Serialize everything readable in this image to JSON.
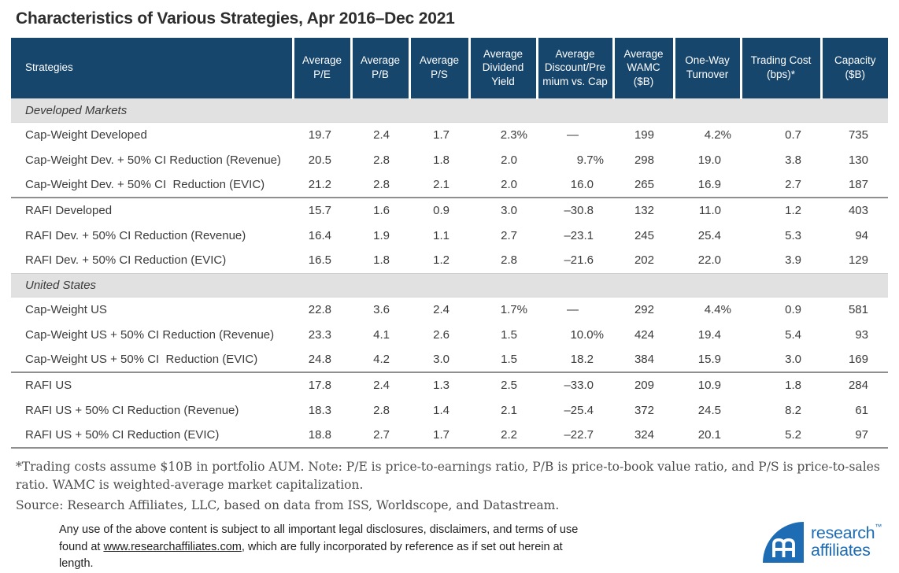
{
  "title": "Characteristics of Various Strategies, Apr 2016–Dec 2021",
  "table": {
    "columns": [
      "Strategies",
      "Average P/E",
      "Average P/B",
      "Average P/S",
      "Average Dividend Yield",
      "Average Discount/Premium vs. Cap",
      "Average WAMC ($B)",
      "One-Way Turnover",
      "Trading Cost (bps)*",
      "Capacity ($B)"
    ],
    "sections": [
      {
        "label": "Developed Markets",
        "rows": [
          {
            "strategy": "Cap-Weight Developed",
            "values": [
              "19.7",
              "2.4",
              "1.7",
              "2.3%",
              "—",
              "199",
              "4.2%",
              "0.7",
              "735"
            ]
          },
          {
            "strategy": "Cap-Weight Dev. + 50% CI Reduction (Revenue)",
            "values": [
              "20.5",
              "2.8",
              "1.8",
              "2.0",
              "9.7%",
              "298",
              "19.0",
              "3.8",
              "130"
            ]
          },
          {
            "strategy": "Cap-Weight Dev. + 50% CI  Reduction (EVIC)",
            "values": [
              "21.2",
              "2.8",
              "2.1",
              "2.0",
              "16.0",
              "265",
              "16.9",
              "2.7",
              "187"
            ]
          },
          {
            "strategy": "RAFI Developed",
            "divider_above": true,
            "values": [
              "15.7",
              "1.6",
              "0.9",
              "3.0",
              "–30.8",
              "132",
              "11.0",
              "1.2",
              "403"
            ]
          },
          {
            "strategy": "RAFI Dev. + 50% CI Reduction (Revenue)",
            "values": [
              "16.4",
              "1.9",
              "1.1",
              "2.7",
              "–23.1",
              "245",
              "25.4",
              "5.3",
              "94"
            ]
          },
          {
            "strategy": "RAFI Dev. + 50% CI Reduction (EVIC)",
            "values": [
              "16.5",
              "1.8",
              "1.2",
              "2.8",
              "–21.6",
              "202",
              "22.0",
              "3.9",
              "129"
            ]
          }
        ]
      },
      {
        "label": "United States",
        "rows": [
          {
            "strategy": "Cap-Weight US",
            "values": [
              "22.8",
              "3.6",
              "2.4",
              "1.7%",
              "—",
              "292",
              "4.4%",
              "0.9",
              "581"
            ]
          },
          {
            "strategy": "Cap-Weight US + 50% CI Reduction (Revenue)",
            "values": [
              "23.3",
              "4.1",
              "2.6",
              "1.5",
              "10.0%",
              "424",
              "19.4",
              "5.4",
              "93"
            ]
          },
          {
            "strategy": "Cap-Weight US + 50% CI  Reduction (EVIC)",
            "values": [
              "24.8",
              "4.2",
              "3.0",
              "1.5",
              "18.2",
              "384",
              "15.9",
              "3.0",
              "169"
            ]
          },
          {
            "strategy": "RAFI US",
            "divider_above": true,
            "values": [
              "17.8",
              "2.4",
              "1.3",
              "2.5",
              "–33.0",
              "209",
              "10.9",
              "1.8",
              "284"
            ]
          },
          {
            "strategy": "RAFI US + 50% CI Reduction (Revenue)",
            "values": [
              "18.3",
              "2.8",
              "1.4",
              "2.1",
              "–25.4",
              "372",
              "24.5",
              "8.2",
              "61"
            ]
          },
          {
            "strategy": "RAFI US + 50% CI Reduction (EVIC)",
            "values": [
              "18.8",
              "2.7",
              "1.7",
              "2.2",
              "–22.7",
              "324",
              "20.1",
              "5.2",
              "97"
            ]
          }
        ]
      }
    ]
  },
  "chart_data": {
    "type": "table",
    "title": "Characteristics of Various Strategies, Apr 2016–Dec 2021",
    "columns": [
      "Strategies",
      "Average P/E",
      "Average P/B",
      "Average P/S",
      "Average Dividend Yield",
      "Average Discount/Premium vs. Cap",
      "Average WAMC ($B)",
      "One-Way Turnover",
      "Trading Cost (bps)*",
      "Capacity ($B)"
    ],
    "rows": [
      [
        "Developed Markets",
        "",
        "",
        "",
        "",
        "",
        "",
        "",
        "",
        ""
      ],
      [
        "Cap-Weight Developed",
        "19.7",
        "2.4",
        "1.7",
        "2.3%",
        "—",
        "199",
        "4.2%",
        "0.7",
        "735"
      ],
      [
        "Cap-Weight Dev. + 50% CI Reduction (Revenue)",
        "20.5",
        "2.8",
        "1.8",
        "2.0",
        "9.7%",
        "298",
        "19.0",
        "3.8",
        "130"
      ],
      [
        "Cap-Weight Dev. + 50% CI Reduction (EVIC)",
        "21.2",
        "2.8",
        "2.1",
        "2.0",
        "16.0",
        "265",
        "16.9",
        "2.7",
        "187"
      ],
      [
        "RAFI Developed",
        "15.7",
        "1.6",
        "0.9",
        "3.0",
        "–30.8",
        "132",
        "11.0",
        "1.2",
        "403"
      ],
      [
        "RAFI Dev. + 50% CI Reduction (Revenue)",
        "16.4",
        "1.9",
        "1.1",
        "2.7",
        "–23.1",
        "245",
        "25.4",
        "5.3",
        "94"
      ],
      [
        "RAFI Dev. + 50% CI Reduction (EVIC)",
        "16.5",
        "1.8",
        "1.2",
        "2.8",
        "–21.6",
        "202",
        "22.0",
        "3.9",
        "129"
      ],
      [
        "United States",
        "",
        "",
        "",
        "",
        "",
        "",
        "",
        "",
        ""
      ],
      [
        "Cap-Weight US",
        "22.8",
        "3.6",
        "2.4",
        "1.7%",
        "—",
        "292",
        "4.4%",
        "0.9",
        "581"
      ],
      [
        "Cap-Weight US + 50% CI Reduction (Revenue)",
        "23.3",
        "4.1",
        "2.6",
        "1.5",
        "10.0%",
        "424",
        "19.4",
        "5.4",
        "93"
      ],
      [
        "Cap-Weight US + 50% CI Reduction (EVIC)",
        "24.8",
        "4.2",
        "3.0",
        "1.5",
        "18.2",
        "384",
        "15.9",
        "3.0",
        "169"
      ],
      [
        "RAFI US",
        "17.8",
        "2.4",
        "1.3",
        "2.5",
        "–33.0",
        "209",
        "10.9",
        "1.8",
        "284"
      ],
      [
        "RAFI US + 50% CI Reduction (Revenue)",
        "18.3",
        "2.8",
        "1.4",
        "2.1",
        "–25.4",
        "372",
        "24.5",
        "8.2",
        "61"
      ],
      [
        "RAFI US + 50% CI Reduction (EVIC)",
        "18.8",
        "2.7",
        "1.7",
        "2.2",
        "–22.7",
        "324",
        "20.1",
        "5.2",
        "97"
      ]
    ]
  },
  "footnotes": {
    "trading_note": "*Trading costs assume $10B in portfolio AUM. Note: P/E is price-to-earnings ratio, P/B is price-to-book value ratio, and P/S is price-to-sales ratio. WAMC is weighted-average market capitalization.",
    "source": "Source: Research Affiliates, LLC, based on data from ISS, Worldscope, and Datastream."
  },
  "disclaimer": {
    "text_before_link": "Any use of the above content is subject to all important legal disclosures, disclaimers, and terms of use found at ",
    "link_text": "www.researchaffiliates.com",
    "text_after_link": ", which are fully incorporated by reference as if set out herein at length."
  },
  "logo": {
    "line1": "research",
    "line2": "affiliates",
    "trademark": "™"
  },
  "colors": {
    "header_navy": "#17466d",
    "section_gray": "#e1e1e1",
    "logo_blue": "#1e6cb3",
    "divider_gray": "#8f8f8f"
  }
}
